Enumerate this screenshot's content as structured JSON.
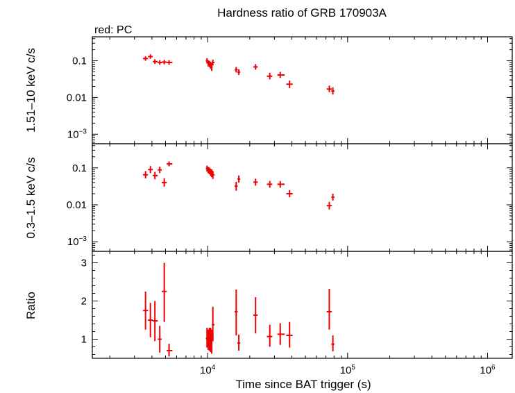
{
  "chart_data": {
    "type": "scatter",
    "title": "Hardness ratio of GRB 170903A",
    "subtitle": "red: PC",
    "xlabel": "Time since BAT trigger (s)",
    "x_scale": "log",
    "xlim": [
      1500,
      1500000
    ],
    "x_tick_labels": [
      {
        "base": "10",
        "exp": "4",
        "value": 10000
      },
      {
        "base": "10",
        "exp": "5",
        "value": 100000
      },
      {
        "base": "10",
        "exp": "6",
        "value": 1000000
      }
    ],
    "series_color": "#ee0000",
    "panels": [
      {
        "ylabel": "1.51–10 keV c/s",
        "y_scale": "log",
        "ylim": [
          0.00055,
          0.45
        ],
        "y_tick_labels": [
          {
            "text": "0.1",
            "value": 0.1
          },
          {
            "text": "0.01",
            "value": 0.01
          },
          {
            "base": "10",
            "exp": "−3",
            "value": 0.001
          }
        ],
        "points": [
          {
            "x": 3600,
            "xerr": [
              3450,
              3750
            ],
            "y": 0.115,
            "yerr": [
              0.1,
              0.132
            ]
          },
          {
            "x": 3900,
            "xerr": [
              3750,
              4050
            ],
            "y": 0.13,
            "yerr": [
              0.113,
              0.15
            ]
          },
          {
            "x": 4200,
            "xerr": [
              4050,
              4400
            ],
            "y": 0.095,
            "yerr": [
              0.082,
              0.11
            ]
          },
          {
            "x": 4550,
            "xerr": [
              4400,
              4700
            ],
            "y": 0.09,
            "yerr": [
              0.078,
              0.104
            ]
          },
          {
            "x": 4900,
            "xerr": [
              4700,
              5100
            ],
            "y": 0.092,
            "yerr": [
              0.08,
              0.106
            ]
          },
          {
            "x": 5300,
            "xerr": [
              5100,
              5600
            ],
            "y": 0.09,
            "yerr": [
              0.078,
              0.104
            ]
          },
          {
            "x": 9900,
            "xerr": [
              9700,
              10100
            ],
            "y": 0.1,
            "yerr": [
              0.085,
              0.118
            ]
          },
          {
            "x": 10100,
            "xerr": [
              9950,
              10250
            ],
            "y": 0.085,
            "yerr": [
              0.07,
              0.103
            ]
          },
          {
            "x": 10300,
            "xerr": [
              10150,
              10450
            ],
            "y": 0.082,
            "yerr": [
              0.067,
              0.1
            ]
          },
          {
            "x": 10500,
            "xerr": [
              10350,
              10650
            ],
            "y": 0.075,
            "yerr": [
              0.06,
              0.094
            ]
          },
          {
            "x": 10700,
            "xerr": [
              10550,
              10850
            ],
            "y": 0.068,
            "yerr": [
              0.053,
              0.087
            ]
          },
          {
            "x": 10900,
            "xerr": [
              10700,
              11200
            ],
            "y": 0.09,
            "yerr": [
              0.075,
              0.108
            ]
          },
          {
            "x": 16000,
            "xerr": [
              15600,
              16400
            ],
            "y": 0.057,
            "yerr": [
              0.048,
              0.068
            ]
          },
          {
            "x": 16700,
            "xerr": [
              16300,
              17100
            ],
            "y": 0.049,
            "yerr": [
              0.041,
              0.059
            ]
          },
          {
            "x": 22000,
            "xerr": [
              21200,
              22800
            ],
            "y": 0.068,
            "yerr": [
              0.057,
              0.081
            ]
          },
          {
            "x": 27800,
            "xerr": [
              26500,
              29000
            ],
            "y": 0.038,
            "yerr": [
              0.031,
              0.047
            ]
          },
          {
            "x": 33000,
            "xerr": [
              31500,
              35500
            ],
            "y": 0.041,
            "yerr": [
              0.034,
              0.05
            ]
          },
          {
            "x": 38500,
            "xerr": [
              36500,
              40500
            ],
            "y": 0.023,
            "yerr": [
              0.018,
              0.029
            ]
          },
          {
            "x": 74000,
            "xerr": [
              71000,
              77000
            ],
            "y": 0.017,
            "yerr": [
              0.014,
              0.021
            ]
          },
          {
            "x": 78500,
            "xerr": [
              76500,
              80500
            ],
            "y": 0.015,
            "yerr": [
              0.012,
              0.019
            ]
          }
        ]
      },
      {
        "ylabel": "0.3–1.5 keV c/s",
        "y_scale": "log",
        "ylim": [
          0.00055,
          0.45
        ],
        "y_tick_labels": [
          {
            "text": "0.1",
            "value": 0.1
          },
          {
            "text": "0.01",
            "value": 0.01
          },
          {
            "base": "10",
            "exp": "−3",
            "value": 0.001
          }
        ],
        "points": [
          {
            "x": 3600,
            "xerr": [
              3450,
              3750
            ],
            "y": 0.065,
            "yerr": [
              0.052,
              0.082
            ]
          },
          {
            "x": 3900,
            "xerr": [
              3750,
              4050
            ],
            "y": 0.09,
            "yerr": [
              0.072,
              0.112
            ]
          },
          {
            "x": 4200,
            "xerr": [
              4050,
              4400
            ],
            "y": 0.062,
            "yerr": [
              0.049,
              0.078
            ]
          },
          {
            "x": 4550,
            "xerr": [
              4400,
              4700
            ],
            "y": 0.088,
            "yerr": [
              0.072,
              0.108
            ]
          },
          {
            "x": 4900,
            "xerr": [
              4700,
              5100
            ],
            "y": 0.04,
            "yerr": [
              0.031,
              0.052
            ]
          },
          {
            "x": 5300,
            "xerr": [
              5100,
              5600
            ],
            "y": 0.128,
            "yerr": [
              0.11,
              0.149
            ]
          },
          {
            "x": 9900,
            "xerr": [
              9700,
              10100
            ],
            "y": 0.096,
            "yerr": [
              0.08,
              0.115
            ]
          },
          {
            "x": 10100,
            "xerr": [
              9950,
              10250
            ],
            "y": 0.087,
            "yerr": [
              0.071,
              0.106
            ]
          },
          {
            "x": 10300,
            "xerr": [
              10150,
              10450
            ],
            "y": 0.083,
            "yerr": [
              0.067,
              0.102
            ]
          },
          {
            "x": 10500,
            "xerr": [
              10350,
              10650
            ],
            "y": 0.076,
            "yerr": [
              0.06,
              0.095
            ]
          },
          {
            "x": 10700,
            "xerr": [
              10550,
              10850
            ],
            "y": 0.072,
            "yerr": [
              0.056,
              0.091
            ]
          },
          {
            "x": 10900,
            "xerr": [
              10700,
              11200
            ],
            "y": 0.065,
            "yerr": [
              0.05,
              0.083
            ]
          },
          {
            "x": 16000,
            "xerr": [
              15600,
              16400
            ],
            "y": 0.032,
            "yerr": [
              0.024,
              0.042
            ]
          },
          {
            "x": 16700,
            "xerr": [
              16300,
              17100
            ],
            "y": 0.05,
            "yerr": [
              0.04,
              0.062
            ]
          },
          {
            "x": 22000,
            "xerr": [
              21200,
              22800
            ],
            "y": 0.041,
            "yerr": [
              0.033,
              0.051
            ]
          },
          {
            "x": 27800,
            "xerr": [
              26500,
              29000
            ],
            "y": 0.036,
            "yerr": [
              0.029,
              0.044
            ]
          },
          {
            "x": 33000,
            "xerr": [
              31500,
              35500
            ],
            "y": 0.036,
            "yerr": [
              0.029,
              0.044
            ]
          },
          {
            "x": 38500,
            "xerr": [
              36500,
              40500
            ],
            "y": 0.02,
            "yerr": [
              0.016,
              0.025
            ]
          },
          {
            "x": 74000,
            "xerr": [
              71000,
              77000
            ],
            "y": 0.0095,
            "yerr": [
              0.0075,
              0.012
            ]
          },
          {
            "x": 78500,
            "xerr": [
              76500,
              80500
            ],
            "y": 0.016,
            "yerr": [
              0.013,
              0.02
            ]
          }
        ]
      },
      {
        "ylabel": "Ratio",
        "y_scale": "linear",
        "ylim": [
          0.5,
          3.3
        ],
        "y_tick_labels": [
          {
            "text": "1",
            "value": 1
          },
          {
            "text": "2",
            "value": 2
          },
          {
            "text": "3",
            "value": 3
          }
        ],
        "points": [
          {
            "x": 3600,
            "xerr": [
              3450,
              3750
            ],
            "y": 1.75,
            "yerr": [
              1.25,
              2.25
            ]
          },
          {
            "x": 3900,
            "xerr": [
              3750,
              4050
            ],
            "y": 1.5,
            "yerr": [
              1.05,
              1.95
            ]
          },
          {
            "x": 4200,
            "xerr": [
              4050,
              4400
            ],
            "y": 1.48,
            "yerr": [
              0.95,
              2.0
            ]
          },
          {
            "x": 4550,
            "xerr": [
              4400,
              4700
            ],
            "y": 1.0,
            "yerr": [
              0.65,
              1.35
            ]
          },
          {
            "x": 4900,
            "xerr": [
              4700,
              5100
            ],
            "y": 2.25,
            "yerr": [
              1.45,
              3.0
            ]
          },
          {
            "x": 5300,
            "xerr": [
              5100,
              5600
            ],
            "y": 0.7,
            "yerr": [
              0.55,
              0.88
            ]
          },
          {
            "x": 9900,
            "xerr": [
              9700,
              10100
            ],
            "y": 1.02,
            "yerr": [
              0.78,
              1.3
            ]
          },
          {
            "x": 10100,
            "xerr": [
              9950,
              10250
            ],
            "y": 0.98,
            "yerr": [
              0.72,
              1.25
            ]
          },
          {
            "x": 10300,
            "xerr": [
              10150,
              10450
            ],
            "y": 1.0,
            "yerr": [
              0.7,
              1.3
            ]
          },
          {
            "x": 10500,
            "xerr": [
              10350,
              10650
            ],
            "y": 0.97,
            "yerr": [
              0.66,
              1.3
            ]
          },
          {
            "x": 10700,
            "xerr": [
              10550,
              10850
            ],
            "y": 0.93,
            "yerr": [
              0.62,
              1.25
            ]
          },
          {
            "x": 10900,
            "xerr": [
              10700,
              11200
            ],
            "y": 1.38,
            "yerr": [
              0.95,
              1.85
            ]
          },
          {
            "x": 16000,
            "xerr": [
              15600,
              16400
            ],
            "y": 1.72,
            "yerr": [
              1.1,
              2.3
            ]
          },
          {
            "x": 16700,
            "xerr": [
              16300,
              17100
            ],
            "y": 0.9,
            "yerr": [
              0.7,
              1.12
            ]
          },
          {
            "x": 22000,
            "xerr": [
              21200,
              22800
            ],
            "y": 1.63,
            "yerr": [
              1.15,
              2.1
            ]
          },
          {
            "x": 27800,
            "xerr": [
              26500,
              29000
            ],
            "y": 1.07,
            "yerr": [
              0.8,
              1.38
            ]
          },
          {
            "x": 33000,
            "xerr": [
              31500,
              35500
            ],
            "y": 1.13,
            "yerr": [
              0.85,
              1.42
            ]
          },
          {
            "x": 38500,
            "xerr": [
              36500,
              40500
            ],
            "y": 1.1,
            "yerr": [
              0.78,
              1.45
            ]
          },
          {
            "x": 74000,
            "xerr": [
              71000,
              77000
            ],
            "y": 1.72,
            "yerr": [
              1.25,
              2.32
            ]
          },
          {
            "x": 78500,
            "xerr": [
              76500,
              80500
            ],
            "y": 0.87,
            "yerr": [
              0.68,
              1.1
            ]
          }
        ]
      }
    ]
  }
}
